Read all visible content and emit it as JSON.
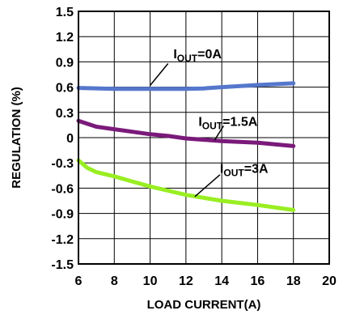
{
  "chart_data": {
    "type": "line",
    "title": "",
    "xlabel": "LOAD CURRENT(A)",
    "ylabel": "REGULATION (%)",
    "xlim": [
      6,
      20
    ],
    "ylim": [
      -1.5,
      1.5
    ],
    "grid": true,
    "xticks": [
      "6",
      "8",
      "10",
      "12",
      "14",
      "16",
      "18",
      "20"
    ],
    "yticks": [
      "1.5",
      "1.2",
      "0.9",
      "0.6",
      "0.3",
      "0",
      "-0.3",
      "-0.6",
      "-0.9",
      "-1.2",
      "-1.5"
    ],
    "series": [
      {
        "color": "#5577cc",
        "x": [
          6,
          8,
          10,
          12,
          13,
          14,
          16,
          18
        ],
        "y": [
          0.59,
          0.58,
          0.58,
          0.58,
          0.585,
          0.6,
          0.625,
          0.645
        ]
      },
      {
        "color": "#7a1a7a",
        "x": [
          6,
          7,
          8,
          9,
          10,
          11,
          12,
          14,
          16,
          18
        ],
        "y": [
          0.2,
          0.13,
          0.1,
          0.07,
          0.04,
          0.02,
          -0.01,
          -0.04,
          -0.06,
          -0.1
        ]
      },
      {
        "color": "#99ee22",
        "x": [
          6,
          6.5,
          7,
          8,
          9,
          10,
          11,
          12,
          14,
          16,
          18
        ],
        "y": [
          -0.27,
          -0.36,
          -0.41,
          -0.46,
          -0.52,
          -0.58,
          -0.63,
          -0.68,
          -0.75,
          -0.8,
          -0.86
        ]
      }
    ],
    "annotations": [
      {
        "main": "I",
        "sub": "OUT",
        "rest": "=0A"
      },
      {
        "main": "I",
        "sub": "OUT",
        "rest": "=1.5A"
      },
      {
        "main": "I",
        "sub": "OUT",
        "rest": "=3A"
      }
    ]
  }
}
